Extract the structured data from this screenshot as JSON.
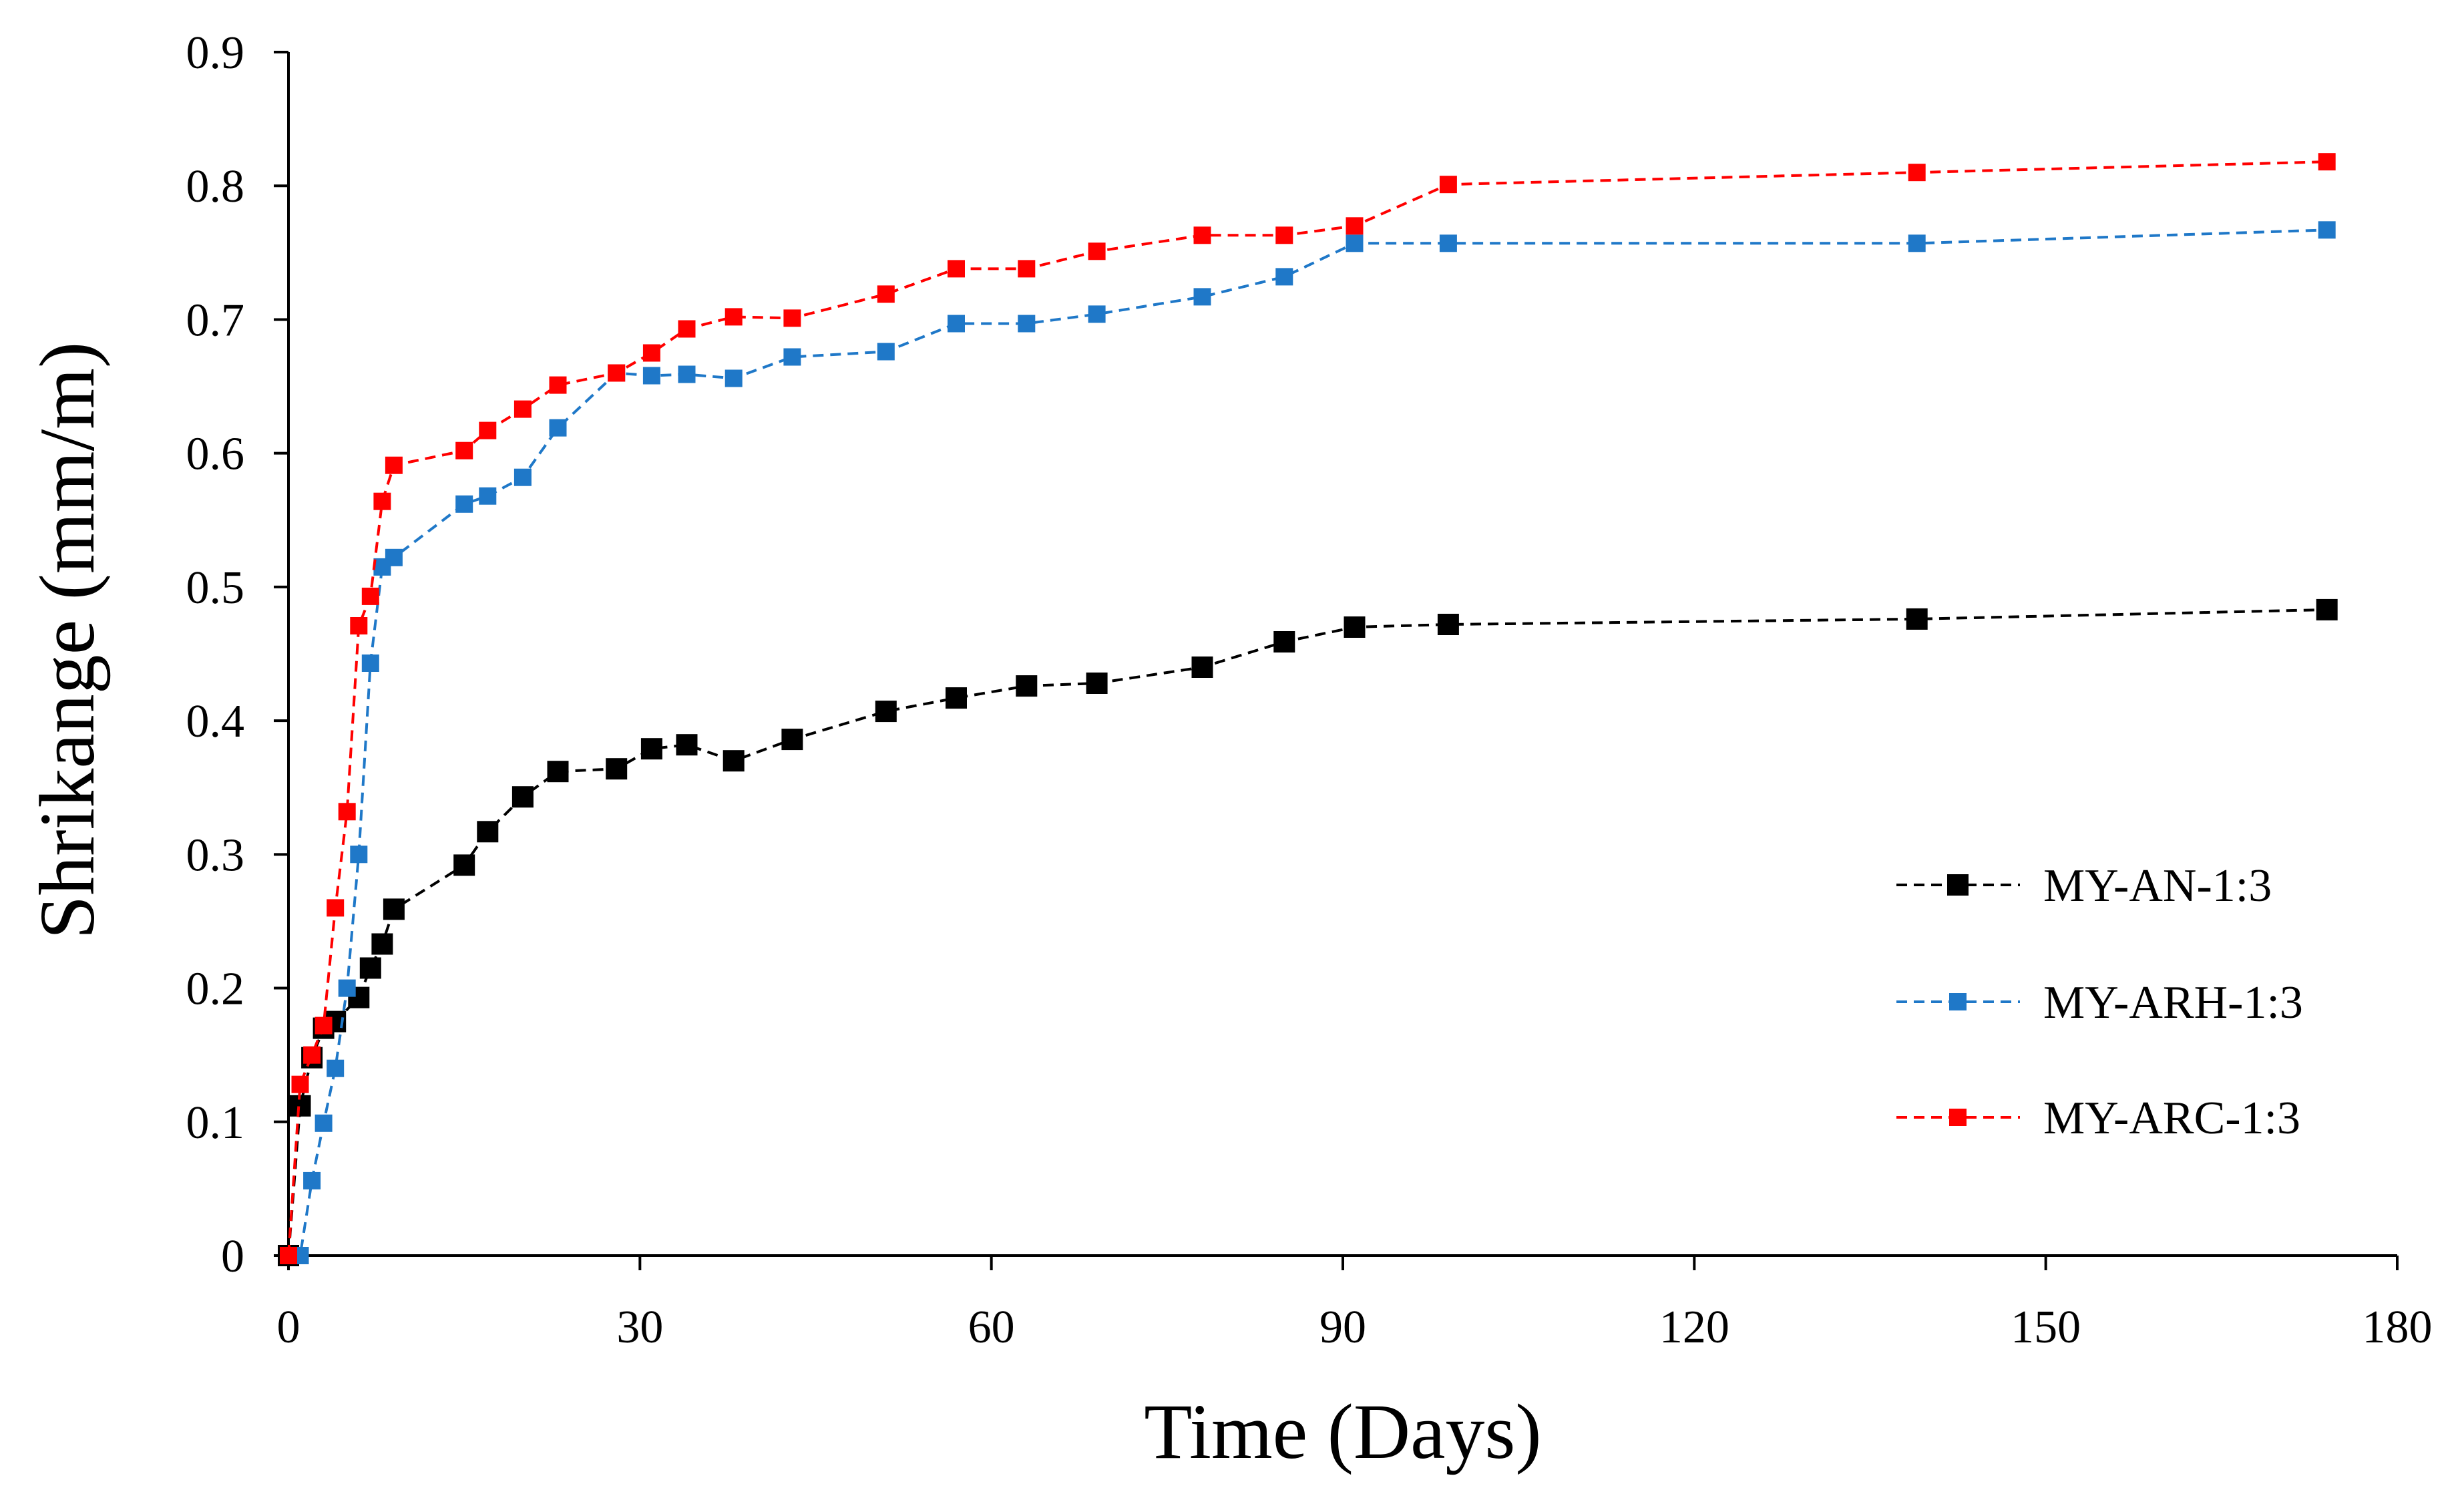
{
  "chart_data": {
    "type": "line",
    "title": "",
    "xlabel": "Time (Days)",
    "ylabel": "Shrikange (mm/m)",
    "xlim": [
      0,
      180
    ],
    "ylim": [
      0,
      0.9
    ],
    "xticks": [
      0,
      30,
      60,
      90,
      120,
      150,
      180
    ],
    "yticks": [
      0,
      0.1,
      0.2,
      0.3,
      0.4,
      0.5,
      0.6,
      0.7,
      0.8,
      0.9
    ],
    "xtick_labels": [
      "0",
      "30",
      "60",
      "90",
      "120",
      "150",
      "180"
    ],
    "ytick_labels": [
      "0",
      "0.1",
      "0.2",
      "0.3",
      "0.4",
      "0.5",
      "0.6",
      "0.7",
      "0.8",
      "0.9"
    ],
    "grid": false,
    "legend_position": "right",
    "series": [
      {
        "name": "MY-AN-1:3",
        "color": "#000000",
        "marker": "square-large",
        "x": [
          0,
          1,
          2,
          3,
          4,
          6,
          7,
          8,
          9,
          15,
          17,
          20,
          23,
          28,
          31,
          34,
          38,
          43,
          51,
          57,
          63,
          69,
          78,
          85,
          91,
          99,
          139,
          174
        ],
        "y": [
          0,
          0.112,
          0.148,
          0.17,
          0.175,
          0.193,
          0.215,
          0.233,
          0.259,
          0.292,
          0.317,
          0.343,
          0.362,
          0.364,
          0.379,
          0.382,
          0.37,
          0.386,
          0.407,
          0.417,
          0.426,
          0.428,
          0.44,
          0.459,
          0.47,
          0.472,
          0.476,
          0.483
        ]
      },
      {
        "name": "MY-ARH-1:3",
        "color": "#1f78c8",
        "marker": "square",
        "x": [
          0,
          1,
          2,
          3,
          4,
          5,
          6,
          7,
          8,
          9,
          15,
          17,
          20,
          23,
          28,
          31,
          34,
          38,
          43,
          51,
          57,
          63,
          69,
          78,
          85,
          91,
          99,
          139,
          174
        ],
        "y": [
          0,
          0,
          0.056,
          0.099,
          0.14,
          0.2,
          0.3,
          0.443,
          0.515,
          0.522,
          0.562,
          0.568,
          0.582,
          0.619,
          0.66,
          0.658,
          0.659,
          0.656,
          0.672,
          0.676,
          0.697,
          0.697,
          0.704,
          0.717,
          0.732,
          0.757,
          0.757,
          0.757,
          0.767
        ]
      },
      {
        "name": "MY-ARC-1:3",
        "color": "#ff0000",
        "marker": "square",
        "x": [
          0,
          1,
          2,
          3,
          4,
          5,
          6,
          7,
          8,
          9,
          15,
          17,
          20,
          23,
          28,
          31,
          34,
          38,
          43,
          51,
          57,
          63,
          69,
          78,
          85,
          91,
          99,
          139,
          174
        ],
        "y": [
          0,
          0.128,
          0.15,
          0.172,
          0.26,
          0.332,
          0.471,
          0.493,
          0.564,
          0.591,
          0.602,
          0.617,
          0.633,
          0.651,
          0.66,
          0.675,
          0.693,
          0.702,
          0.701,
          0.719,
          0.738,
          0.738,
          0.751,
          0.763,
          0.763,
          0.77,
          0.801,
          0.81,
          0.818
        ]
      }
    ]
  }
}
